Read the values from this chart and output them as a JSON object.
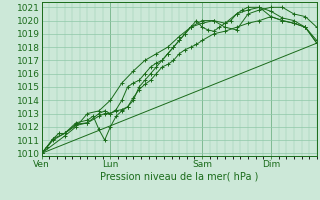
{
  "background_color": "#cce8d8",
  "grid_color": "#8fc8a8",
  "line_color": "#1a6b1a",
  "xlabel_text": "Pression niveau de la mer( hPa )",
  "yticks": [
    1010,
    1011,
    1012,
    1013,
    1014,
    1015,
    1016,
    1017,
    1018,
    1019,
    1020,
    1021
  ],
  "ylim": [
    1009.8,
    1021.4
  ],
  "day_labels": [
    "Ven",
    "Lun",
    "Sam",
    "Dim"
  ],
  "day_positions": [
    0,
    72,
    168,
    240
  ],
  "xlim": [
    0,
    288
  ],
  "series_straight": [
    [
      0,
      1010.0
    ],
    [
      288,
      1018.3
    ]
  ],
  "series": [
    [
      [
        0,
        1010.0
      ],
      [
        6,
        1010.5
      ],
      [
        12,
        1011.1
      ],
      [
        18,
        1011.5
      ],
      [
        24,
        1011.5
      ],
      [
        36,
        1012.1
      ],
      [
        48,
        1012.3
      ],
      [
        60,
        1012.8
      ],
      [
        66,
        1013.0
      ],
      [
        72,
        1013.0
      ],
      [
        78,
        1013.2
      ],
      [
        84,
        1013.3
      ],
      [
        90,
        1013.5
      ],
      [
        96,
        1014.2
      ],
      [
        102,
        1014.8
      ],
      [
        108,
        1015.2
      ],
      [
        114,
        1015.5
      ],
      [
        120,
        1016.0
      ],
      [
        126,
        1016.5
      ],
      [
        132,
        1016.7
      ],
      [
        138,
        1017.0
      ],
      [
        144,
        1017.5
      ],
      [
        150,
        1017.8
      ],
      [
        156,
        1018.0
      ],
      [
        162,
        1018.2
      ],
      [
        168,
        1018.5
      ],
      [
        180,
        1019.0
      ],
      [
        192,
        1019.2
      ],
      [
        204,
        1019.5
      ],
      [
        216,
        1019.8
      ],
      [
        228,
        1020.0
      ],
      [
        240,
        1020.3
      ],
      [
        252,
        1020.0
      ],
      [
        264,
        1019.8
      ],
      [
        276,
        1019.5
      ],
      [
        288,
        1018.3
      ]
    ],
    [
      [
        0,
        1010.0
      ],
      [
        12,
        1011.0
      ],
      [
        24,
        1011.5
      ],
      [
        36,
        1012.2
      ],
      [
        48,
        1012.3
      ],
      [
        60,
        1013.0
      ],
      [
        66,
        1013.2
      ],
      [
        72,
        1013.0
      ],
      [
        78,
        1013.3
      ],
      [
        84,
        1014.0
      ],
      [
        90,
        1015.0
      ],
      [
        96,
        1015.3
      ],
      [
        102,
        1015.5
      ],
      [
        108,
        1016.0
      ],
      [
        114,
        1016.5
      ],
      [
        120,
        1016.8
      ],
      [
        126,
        1017.0
      ],
      [
        132,
        1017.5
      ],
      [
        138,
        1018.0
      ],
      [
        144,
        1018.5
      ],
      [
        150,
        1019.0
      ],
      [
        156,
        1019.5
      ],
      [
        168,
        1019.8
      ],
      [
        180,
        1020.0
      ],
      [
        192,
        1019.5
      ],
      [
        204,
        1019.3
      ],
      [
        216,
        1020.5
      ],
      [
        228,
        1020.8
      ],
      [
        240,
        1021.0
      ],
      [
        252,
        1021.0
      ],
      [
        264,
        1020.5
      ],
      [
        276,
        1020.3
      ],
      [
        288,
        1019.5
      ]
    ],
    [
      [
        0,
        1010.0
      ],
      [
        12,
        1011.1
      ],
      [
        24,
        1011.5
      ],
      [
        36,
        1012.3
      ],
      [
        48,
        1012.5
      ],
      [
        54,
        1012.8
      ],
      [
        60,
        1011.8
      ],
      [
        66,
        1011.0
      ],
      [
        72,
        1012.0
      ],
      [
        78,
        1012.8
      ],
      [
        84,
        1013.2
      ],
      [
        90,
        1013.5
      ],
      [
        96,
        1014.0
      ],
      [
        102,
        1015.0
      ],
      [
        108,
        1015.5
      ],
      [
        114,
        1016.0
      ],
      [
        120,
        1016.5
      ],
      [
        126,
        1017.0
      ],
      [
        132,
        1017.5
      ],
      [
        138,
        1018.0
      ],
      [
        144,
        1018.5
      ],
      [
        150,
        1019.0
      ],
      [
        156,
        1019.5
      ],
      [
        162,
        1020.0
      ],
      [
        168,
        1019.5
      ],
      [
        174,
        1019.3
      ],
      [
        180,
        1019.2
      ],
      [
        186,
        1019.5
      ],
      [
        192,
        1019.8
      ],
      [
        198,
        1020.0
      ],
      [
        204,
        1020.5
      ],
      [
        210,
        1020.8
      ],
      [
        216,
        1021.0
      ],
      [
        228,
        1021.0
      ],
      [
        240,
        1020.3
      ],
      [
        252,
        1020.0
      ],
      [
        264,
        1019.8
      ],
      [
        276,
        1019.5
      ],
      [
        288,
        1018.5
      ]
    ],
    [
      [
        0,
        1010.0
      ],
      [
        24,
        1011.3
      ],
      [
        36,
        1012.0
      ],
      [
        48,
        1013.0
      ],
      [
        60,
        1013.2
      ],
      [
        72,
        1014.0
      ],
      [
        84,
        1015.3
      ],
      [
        96,
        1016.2
      ],
      [
        108,
        1017.0
      ],
      [
        120,
        1017.5
      ],
      [
        132,
        1018.0
      ],
      [
        144,
        1018.8
      ],
      [
        156,
        1019.5
      ],
      [
        168,
        1020.0
      ],
      [
        180,
        1020.0
      ],
      [
        192,
        1019.8
      ],
      [
        204,
        1020.5
      ],
      [
        216,
        1020.8
      ],
      [
        228,
        1021.0
      ],
      [
        240,
        1020.7
      ],
      [
        252,
        1020.2
      ],
      [
        264,
        1020.0
      ],
      [
        276,
        1019.5
      ],
      [
        288,
        1018.3
      ]
    ]
  ]
}
